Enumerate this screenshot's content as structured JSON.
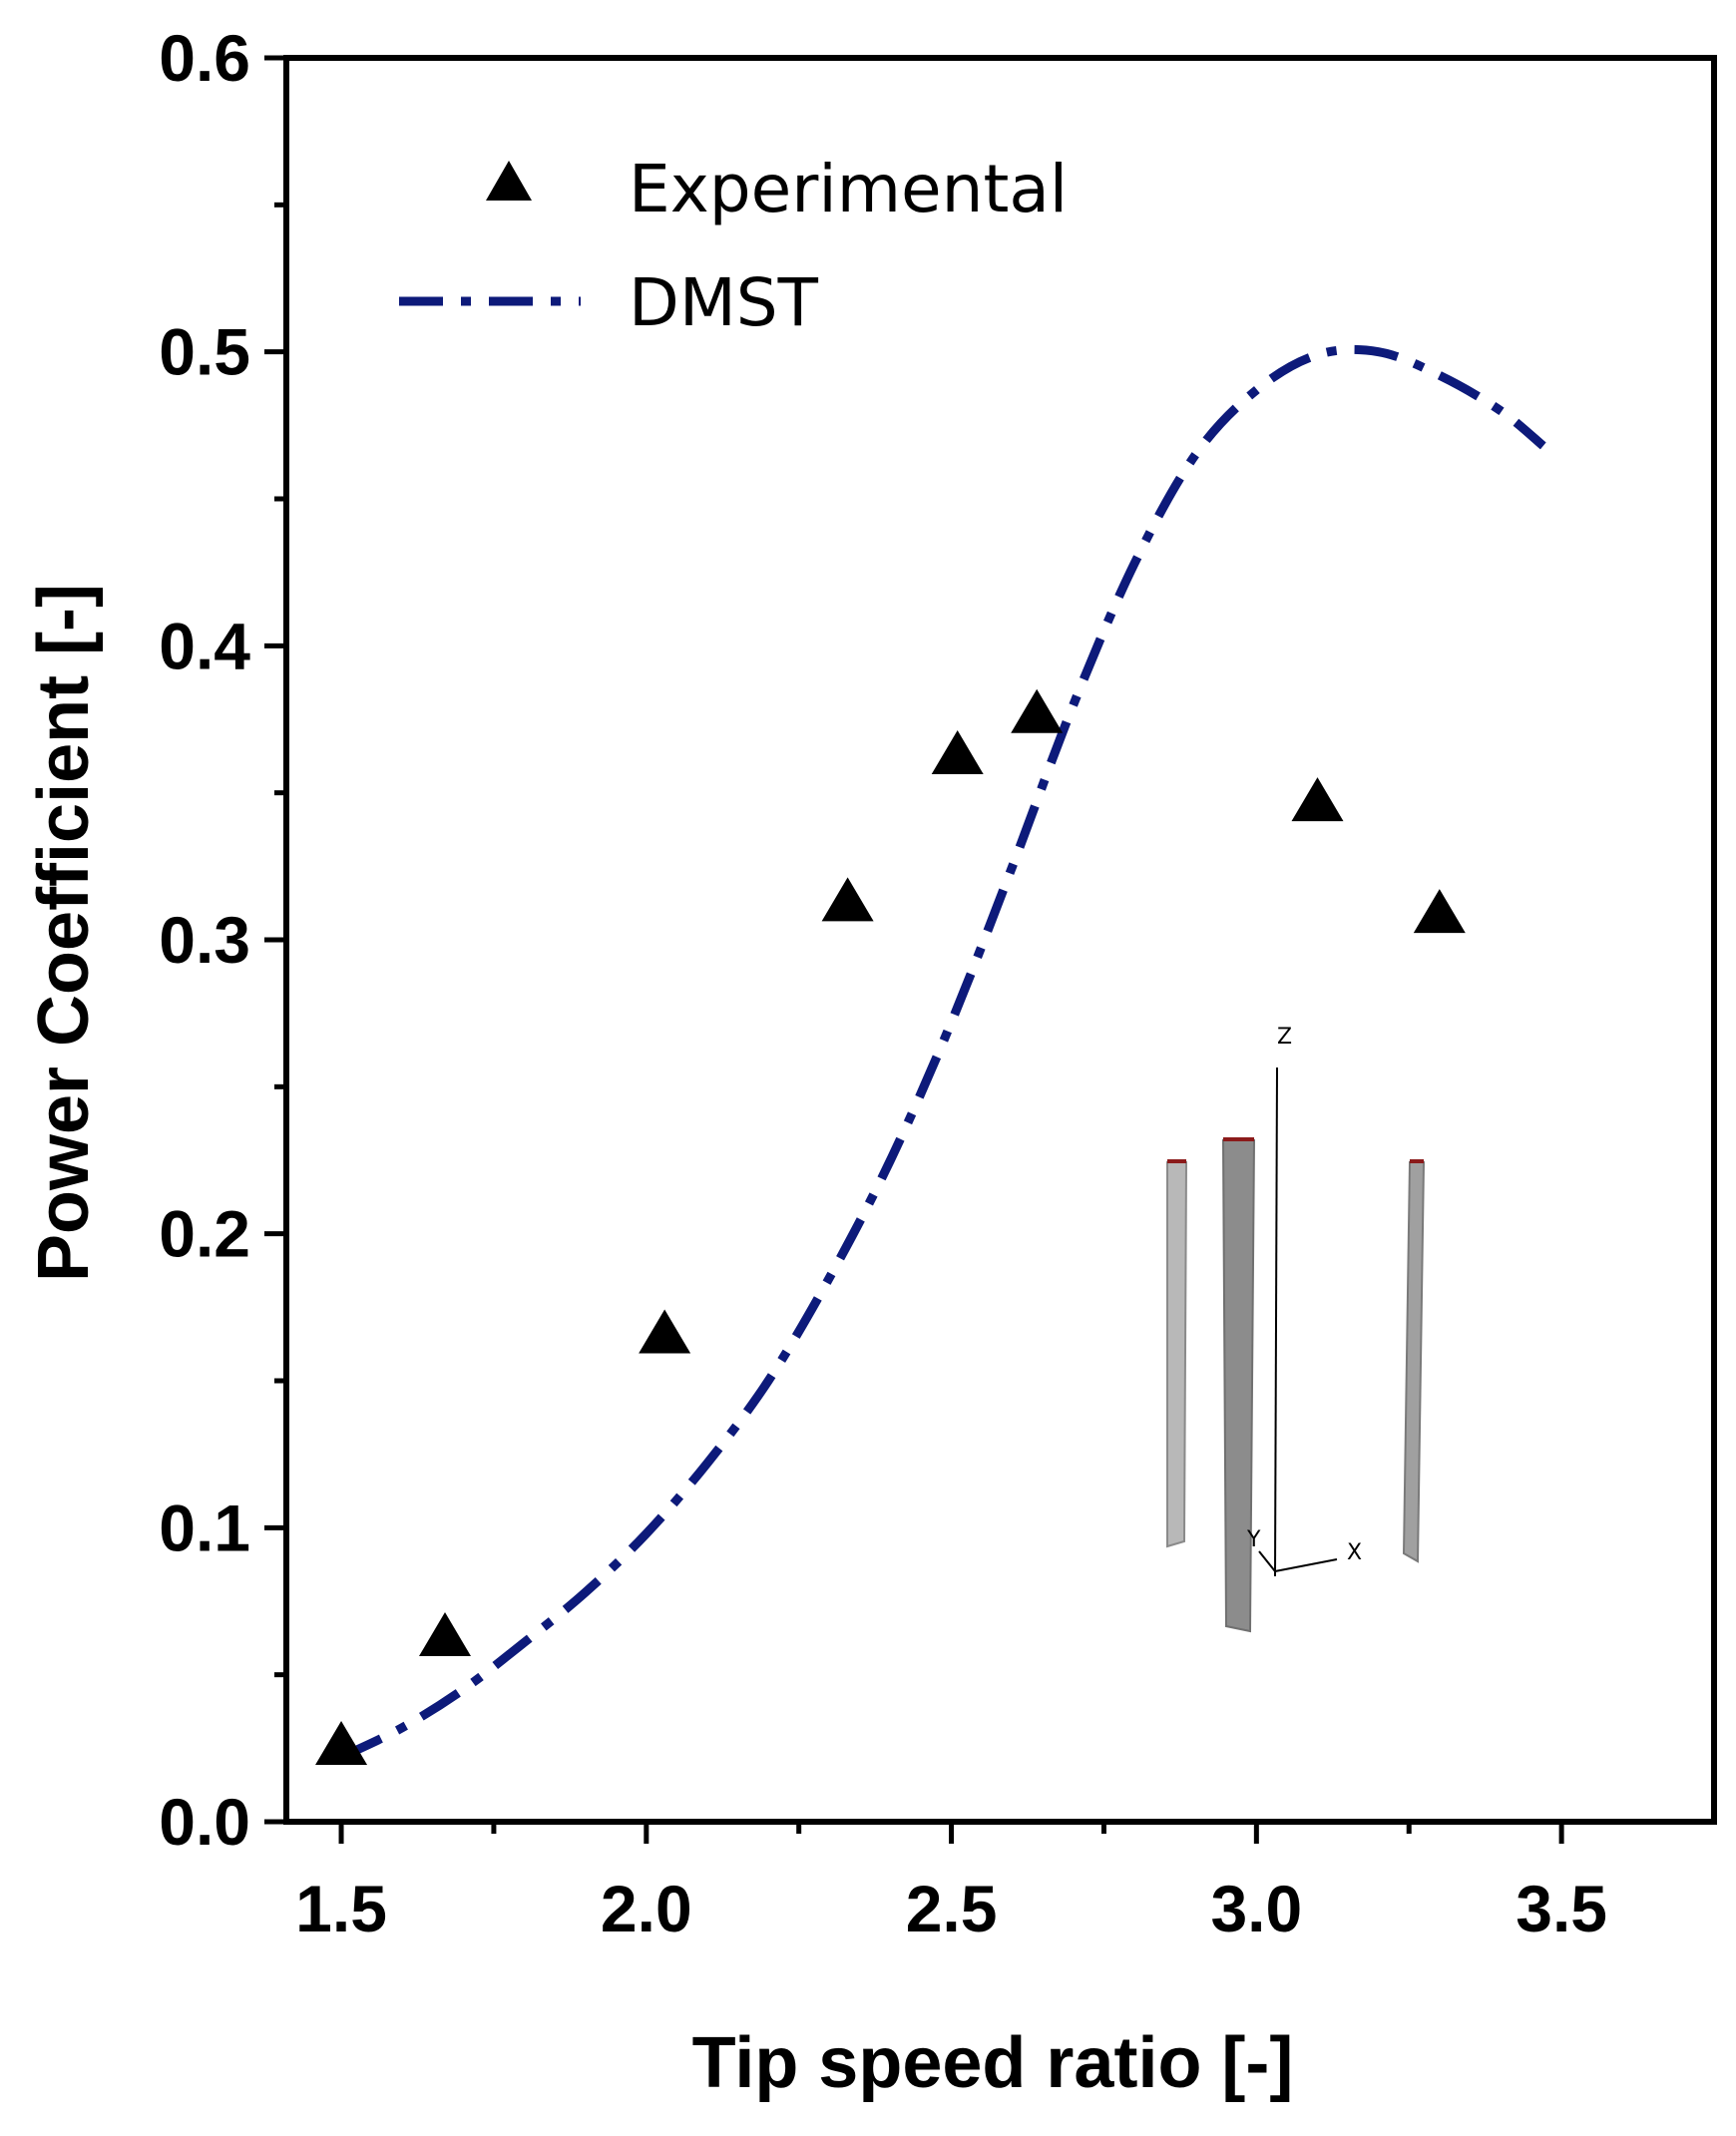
{
  "chart_data": {
    "type": "line+scatter",
    "title": "",
    "xlabel": "Tip speed ratio [-]",
    "ylabel": "Power Coefficient [-]",
    "xlim": [
      1.41,
      3.75
    ],
    "ylim": [
      0.0,
      0.6
    ],
    "x_ticks": [
      1.5,
      2.0,
      2.5,
      3.0,
      3.5
    ],
    "x_tick_labels": [
      "1.5",
      "2.0",
      "2.5",
      "3.0",
      "3.5"
    ],
    "y_ticks": [
      0.0,
      0.1,
      0.2,
      0.3,
      0.4,
      0.5,
      0.6
    ],
    "y_tick_labels": [
      "0.0",
      "0.1",
      "0.2",
      "0.3",
      "0.4",
      "0.5",
      "0.6"
    ],
    "grid": false,
    "legend_position": "top-left",
    "series": [
      {
        "name": "Experimental",
        "kind": "scatter",
        "marker": "triangle",
        "color": "#000000",
        "x": [
          1.5,
          1.67,
          2.03,
          2.33,
          2.51,
          2.64,
          3.1,
          3.3
        ],
        "y": [
          0.025,
          0.062,
          0.165,
          0.312,
          0.362,
          0.376,
          0.346,
          0.308
        ]
      },
      {
        "name": "DMST",
        "kind": "line",
        "style": "dash-dot",
        "color": "#0d1a7a",
        "x": [
          1.5,
          1.6,
          1.7,
          1.8,
          1.9,
          2.0,
          2.1,
          2.2,
          2.3,
          2.4,
          2.5,
          2.6,
          2.7,
          2.8,
          2.9,
          3.0,
          3.1,
          3.2,
          3.3,
          3.4,
          3.47
        ],
        "y": [
          0.022,
          0.032,
          0.045,
          0.061,
          0.078,
          0.098,
          0.122,
          0.15,
          0.185,
          0.225,
          0.272,
          0.325,
          0.38,
          0.428,
          0.465,
          0.487,
          0.499,
          0.5,
          0.492,
          0.48,
          0.468
        ]
      }
    ],
    "inset": {
      "description": "3D turbine blade geometry",
      "axis_labels": [
        "Z",
        "Y",
        "X"
      ]
    }
  }
}
